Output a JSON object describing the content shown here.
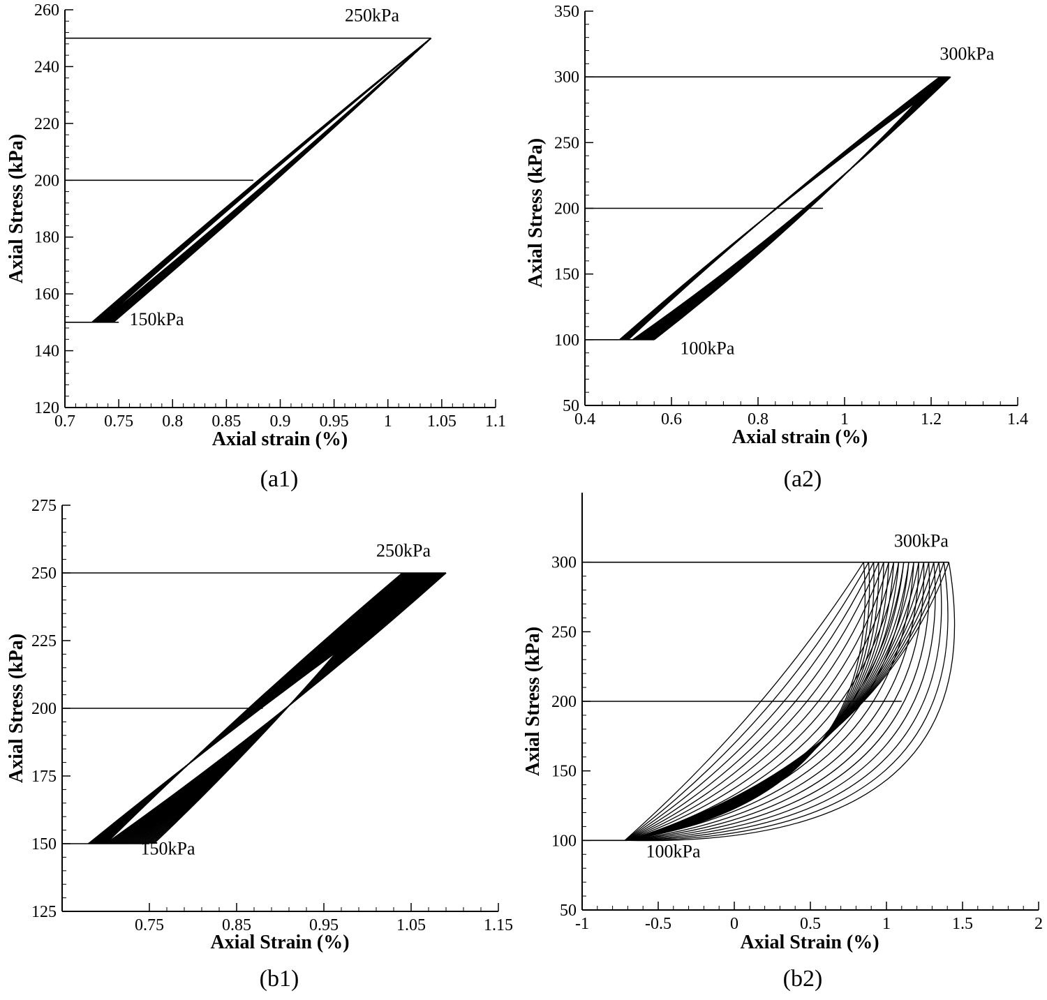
{
  "colors": {
    "ink": "#000000",
    "background": "#ffffff"
  },
  "chart_data": [
    {
      "id": "a1",
      "type": "line",
      "caption": "(a1)",
      "xlabel": "Axial strain (%)",
      "ylabel": "Axial Stress (kPa)",
      "xlim": [
        0.7,
        1.1
      ],
      "ylim": [
        120,
        260
      ],
      "xticks": [
        0.7,
        0.75,
        0.8,
        0.85,
        0.9,
        0.95,
        1,
        1.05,
        1.1
      ],
      "xtick_labels": [
        "0.7",
        "0.75",
        "0.8",
        "0.85",
        "0.9",
        "0.95",
        "1",
        "1.05",
        "1.1"
      ],
      "yticks": [
        120,
        140,
        160,
        180,
        200,
        220,
        240,
        260
      ],
      "ytick_labels": [
        "120",
        "140",
        "160",
        "180",
        "200",
        "220",
        "240",
        "260"
      ],
      "reference_lines": [
        {
          "y": 250,
          "x_end": 1.04
        },
        {
          "y": 200,
          "x_end": 0.875
        },
        {
          "y": 150,
          "x_end": 0.75
        }
      ],
      "annotations": [
        {
          "text": "250kPa",
          "x": 0.96,
          "y": 256
        },
        {
          "text": "150kPa",
          "x": 0.76,
          "y": 149
        }
      ],
      "cycles": {
        "count": 30,
        "min_stress": 150,
        "max_stress": 250,
        "start_unload": [
          0.733,
          0.725
        ],
        "start_load": [
          0.745,
          0.733
        ],
        "peak": [
          1.04,
          1.04
        ],
        "curv_unload": [
          10,
          10
        ],
        "curv_load": [
          12,
          12
        ]
      }
    },
    {
      "id": "a2",
      "type": "line",
      "caption": "(a2)",
      "xlabel": "Axial strain (%)",
      "ylabel": "Axial Stress (kPa)",
      "xlim": [
        0.4,
        1.4
      ],
      "ylim": [
        50,
        350
      ],
      "xticks": [
        0.4,
        0.6,
        0.8,
        1,
        1.2,
        1.4
      ],
      "xtick_labels": [
        "0.4",
        "0.6",
        "0.8",
        "1",
        "1.2",
        "1.4"
      ],
      "yticks": [
        50,
        100,
        150,
        200,
        250,
        300,
        350
      ],
      "ytick_labels": [
        "50",
        "100",
        "150",
        "200",
        "250",
        "300",
        "350"
      ],
      "reference_lines": [
        {
          "y": 300,
          "x_end": 1.24
        },
        {
          "y": 200,
          "x_end": 0.95
        },
        {
          "y": 100,
          "x_end": 0.56
        }
      ],
      "annotations": [
        {
          "text": "300kPa",
          "x": 1.22,
          "y": 313
        },
        {
          "text": "100kPa",
          "x": 0.62,
          "y": 89
        }
      ],
      "cycles": {
        "count": 30,
        "min_stress": 100,
        "max_stress": 300,
        "start_unload": [
          0.5,
          0.48
        ],
        "start_load": [
          0.56,
          0.51
        ],
        "peak": [
          1.22,
          1.245
        ],
        "curv_unload": [
          25,
          25
        ],
        "curv_load": [
          40,
          40
        ]
      }
    },
    {
      "id": "b1",
      "type": "line",
      "caption": "(b1)",
      "xlabel": "Axial Strain (%)",
      "ylabel": "Axial Stress (kPa)",
      "xlim": [
        0.65,
        1.15
      ],
      "ylim": [
        125,
        275
      ],
      "xticks": [
        0.75,
        0.85,
        0.95,
        1.05,
        1.15
      ],
      "xtick_labels": [
        "0.75",
        "0.85",
        "0.95",
        "1.05",
        "1.15"
      ],
      "yticks": [
        125,
        150,
        175,
        200,
        225,
        250,
        275
      ],
      "ytick_labels": [
        "125",
        "150",
        "175",
        "200",
        "225",
        "250",
        "275"
      ],
      "reference_lines": [
        {
          "y": 250,
          "x_end": 1.09
        },
        {
          "y": 200,
          "x_end": 0.88
        },
        {
          "y": 150,
          "x_end": 0.75
        }
      ],
      "annotations": [
        {
          "text": "250kPa",
          "x": 1.01,
          "y": 256
        },
        {
          "text": "150kPa",
          "x": 0.74,
          "y": 146
        }
      ],
      "cycles": {
        "count": 30,
        "min_stress": 150,
        "max_stress": 250,
        "start_unload": [
          0.7,
          0.68
        ],
        "start_load": [
          0.755,
          0.7
        ],
        "peak": [
          1.04,
          1.09
        ],
        "curv_unload": [
          18,
          18
        ],
        "curv_load": [
          30,
          30
        ]
      }
    },
    {
      "id": "b2",
      "type": "line",
      "caption": "(b2)",
      "xlabel": "Axial Strain (%)",
      "ylabel": "Axial Stress (kPa)",
      "xlim": [
        -1,
        2
      ],
      "ylim": [
        50,
        350
      ],
      "xticks": [
        -1,
        -0.5,
        0,
        0.5,
        1,
        1.5,
        2
      ],
      "xtick_labels": [
        "-1",
        "-0.5",
        "0",
        "0.5",
        "1",
        "1.5",
        "2"
      ],
      "yticks": [
        50,
        100,
        150,
        200,
        250,
        300
      ],
      "ytick_labels": [
        "50",
        "100",
        "150",
        "200",
        "250",
        "300"
      ],
      "reference_lines": [
        {
          "y": 300,
          "x_end": 1.41
        },
        {
          "y": 200,
          "x_end": 1.1
        },
        {
          "y": 100,
          "x_end": -0.7
        }
      ],
      "annotations": [
        {
          "text": "300kPa",
          "x": 1.05,
          "y": 311
        },
        {
          "text": "100kPa",
          "x": -0.58,
          "y": 88
        }
      ],
      "cycles": {
        "count": 18,
        "min_stress": 100,
        "max_stress": 300,
        "start_unload": [
          -0.72,
          -0.7
        ],
        "start_load": [
          -0.72,
          -0.7
        ],
        "peak": [
          0.85,
          1.41
        ],
        "curv_unload": [
          -400,
          -250
        ],
        "curv_load": [
          60,
          600
        ]
      }
    }
  ]
}
